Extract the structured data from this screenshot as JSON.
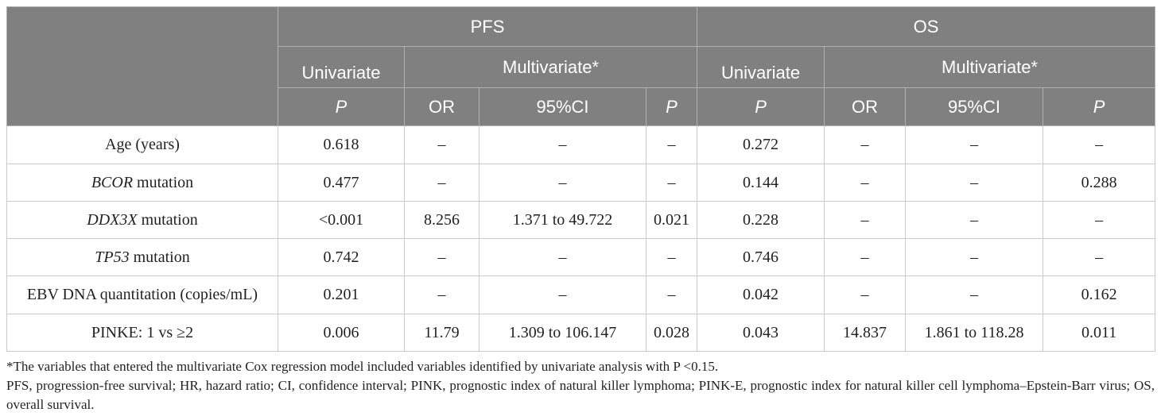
{
  "colors": {
    "header_bg": "#808080",
    "header_text": "#ffffff",
    "header_grid": "#b0b0b0",
    "grid": "#c9c9c9",
    "text": "#231f20"
  },
  "header": {
    "pfs": "PFS",
    "os": "OS",
    "pfs_univariate": "Univariate",
    "pfs_multivariate": "Multivariate*",
    "os_univariate": "Univariate",
    "os_multivariate": "Multivariate*",
    "columns": [
      "P",
      "OR",
      "95%CI",
      "P",
      "P",
      "OR",
      "95%CI",
      "P"
    ]
  },
  "rows": [
    {
      "label": "Age (years)",
      "values": [
        "0.618",
        "–",
        "–",
        "–",
        "0.272",
        "–",
        "–",
        "–"
      ]
    },
    {
      "gene": "BCOR",
      "label": "mutation",
      "values": [
        "0.477",
        "–",
        "–",
        "–",
        "0.144",
        "–",
        "–",
        "0.288"
      ]
    },
    {
      "gene": "DDX3X",
      "label": "mutation",
      "values": [
        "<0.001",
        "8.256",
        "1.371 to 49.722",
        "0.021",
        "0.228",
        "–",
        "–",
        "–"
      ]
    },
    {
      "gene": "TP53",
      "label": "mutation",
      "values": [
        "0.742",
        "–",
        "–",
        "–",
        "0.746",
        "–",
        "–",
        "–"
      ]
    },
    {
      "label": "EBV DNA quantitation (copies/mL)",
      "values": [
        "0.201",
        "–",
        "–",
        "–",
        "0.042",
        "–",
        "–",
        "0.162"
      ]
    },
    {
      "label": "PINKE: 1 vs ≥2",
      "values": [
        "0.006",
        "11.79",
        "1.309 to 106.147",
        "0.028",
        "0.043",
        "14.837",
        "1.861 to 118.28",
        "0.011"
      ]
    }
  ],
  "footnotes": [
    "*The variables that entered the multivariate Cox regression model included variables identified by univariate analysis with P <0.15.",
    "PFS, progression-free survival; HR, hazard ratio; CI, confidence interval; PINK, prognostic index of natural killer lymphoma; PINK-E, prognostic index for natural killer cell lymphoma–Epstein-Barr virus; OS, overall survival."
  ]
}
